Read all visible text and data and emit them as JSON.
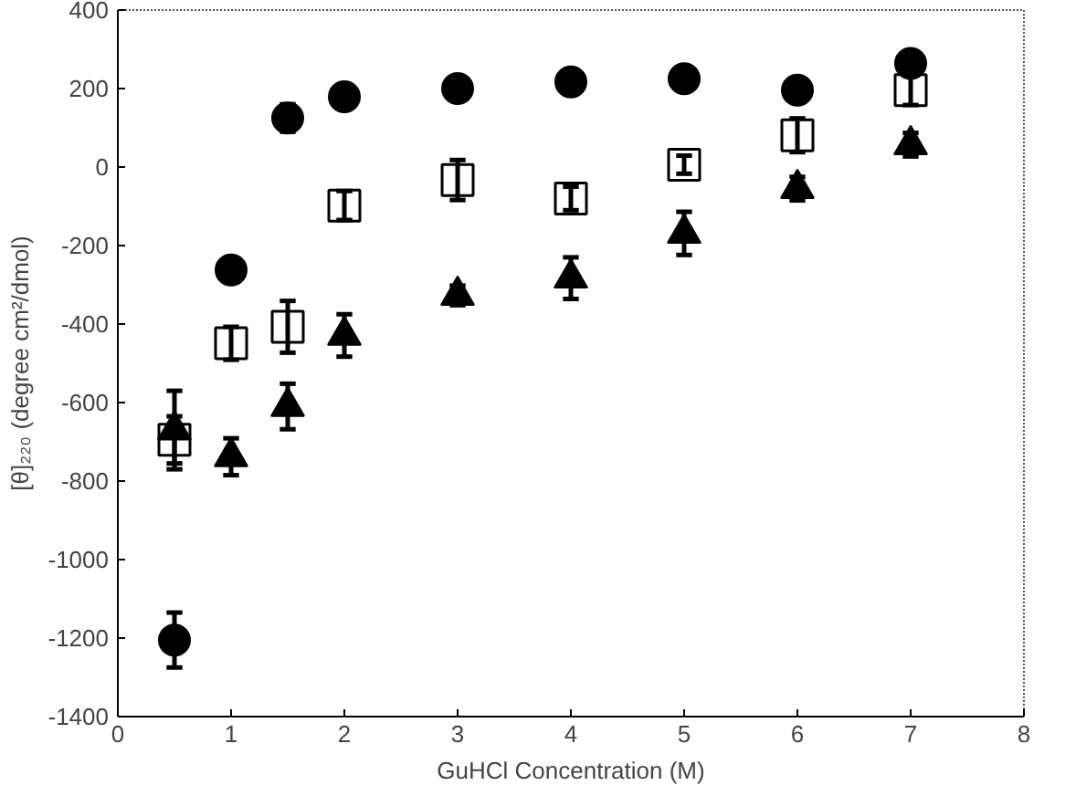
{
  "chart_data": {
    "type": "scatter",
    "xlabel": "GuHCl Concentration (M)",
    "ylabel": "[θ]₂₂₀ (degree cm²/dmol)",
    "x": [
      0.5,
      1,
      1.5,
      2,
      3,
      4,
      5,
      6,
      7
    ],
    "series": [
      {
        "color": "#000000",
        "marker": "circle",
        "values": [
          -1205,
          -262,
          125,
          179,
          200,
          217,
          225,
          196,
          264
        ],
        "errors": [
          70,
          null,
          35,
          25,
          null,
          null,
          null,
          null,
          25
        ]
      },
      {
        "color": "#000000",
        "marker": "square",
        "values": [
          -695,
          -449,
          -407,
          -98,
          -33,
          -80,
          6,
          81,
          196
        ],
        "errors": [
          60,
          42,
          66,
          37,
          51,
          30,
          23,
          43,
          38
        ]
      },
      {
        "color": "#000000",
        "marker": "triangle",
        "values": [
          -670,
          -738,
          -610,
          -429,
          -327,
          -283,
          -169,
          -55,
          57
        ],
        "errors": [
          100,
          47,
          58,
          54,
          25,
          53,
          55,
          30,
          30
        ]
      }
    ],
    "xlim": [
      0,
      8
    ],
    "ylim": [
      -1400,
      400
    ],
    "xticks": [
      0,
      1,
      2,
      3,
      4,
      5,
      6,
      7,
      8
    ],
    "yticks": [
      -1400,
      -1200,
      -1000,
      -800,
      -600,
      -400,
      -200,
      0,
      200,
      400
    ],
    "grid": false
  }
}
